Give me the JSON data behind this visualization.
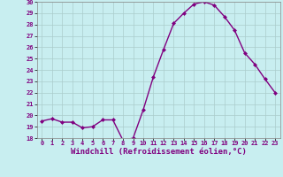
{
  "x": [
    0,
    1,
    2,
    3,
    4,
    5,
    6,
    7,
    8,
    9,
    10,
    11,
    12,
    13,
    14,
    15,
    16,
    17,
    18,
    19,
    20,
    21,
    22,
    23
  ],
  "y": [
    19.5,
    19.7,
    19.4,
    19.4,
    18.9,
    19.0,
    19.6,
    19.6,
    17.8,
    18.0,
    20.5,
    23.4,
    25.8,
    28.1,
    29.0,
    29.8,
    30.0,
    29.7,
    28.7,
    27.5,
    25.5,
    24.5,
    23.2,
    22.0
  ],
  "line_color": "#800080",
  "marker": "D",
  "marker_size": 2,
  "bg_color": "#c8eef0",
  "grid_color": "#aacccc",
  "xlabel": "Windchill (Refroidissement éolien,°C)",
  "ylim": [
    18,
    30
  ],
  "yticks": [
    18,
    19,
    20,
    21,
    22,
    23,
    24,
    25,
    26,
    27,
    28,
    29,
    30
  ],
  "xticks": [
    0,
    1,
    2,
    3,
    4,
    5,
    6,
    7,
    8,
    9,
    10,
    11,
    12,
    13,
    14,
    15,
    16,
    17,
    18,
    19,
    20,
    21,
    22,
    23
  ],
  "tick_fontsize": 5.0,
  "xlabel_fontsize": 6.5,
  "line_width": 1.0,
  "xlim": [
    -0.5,
    23.5
  ]
}
